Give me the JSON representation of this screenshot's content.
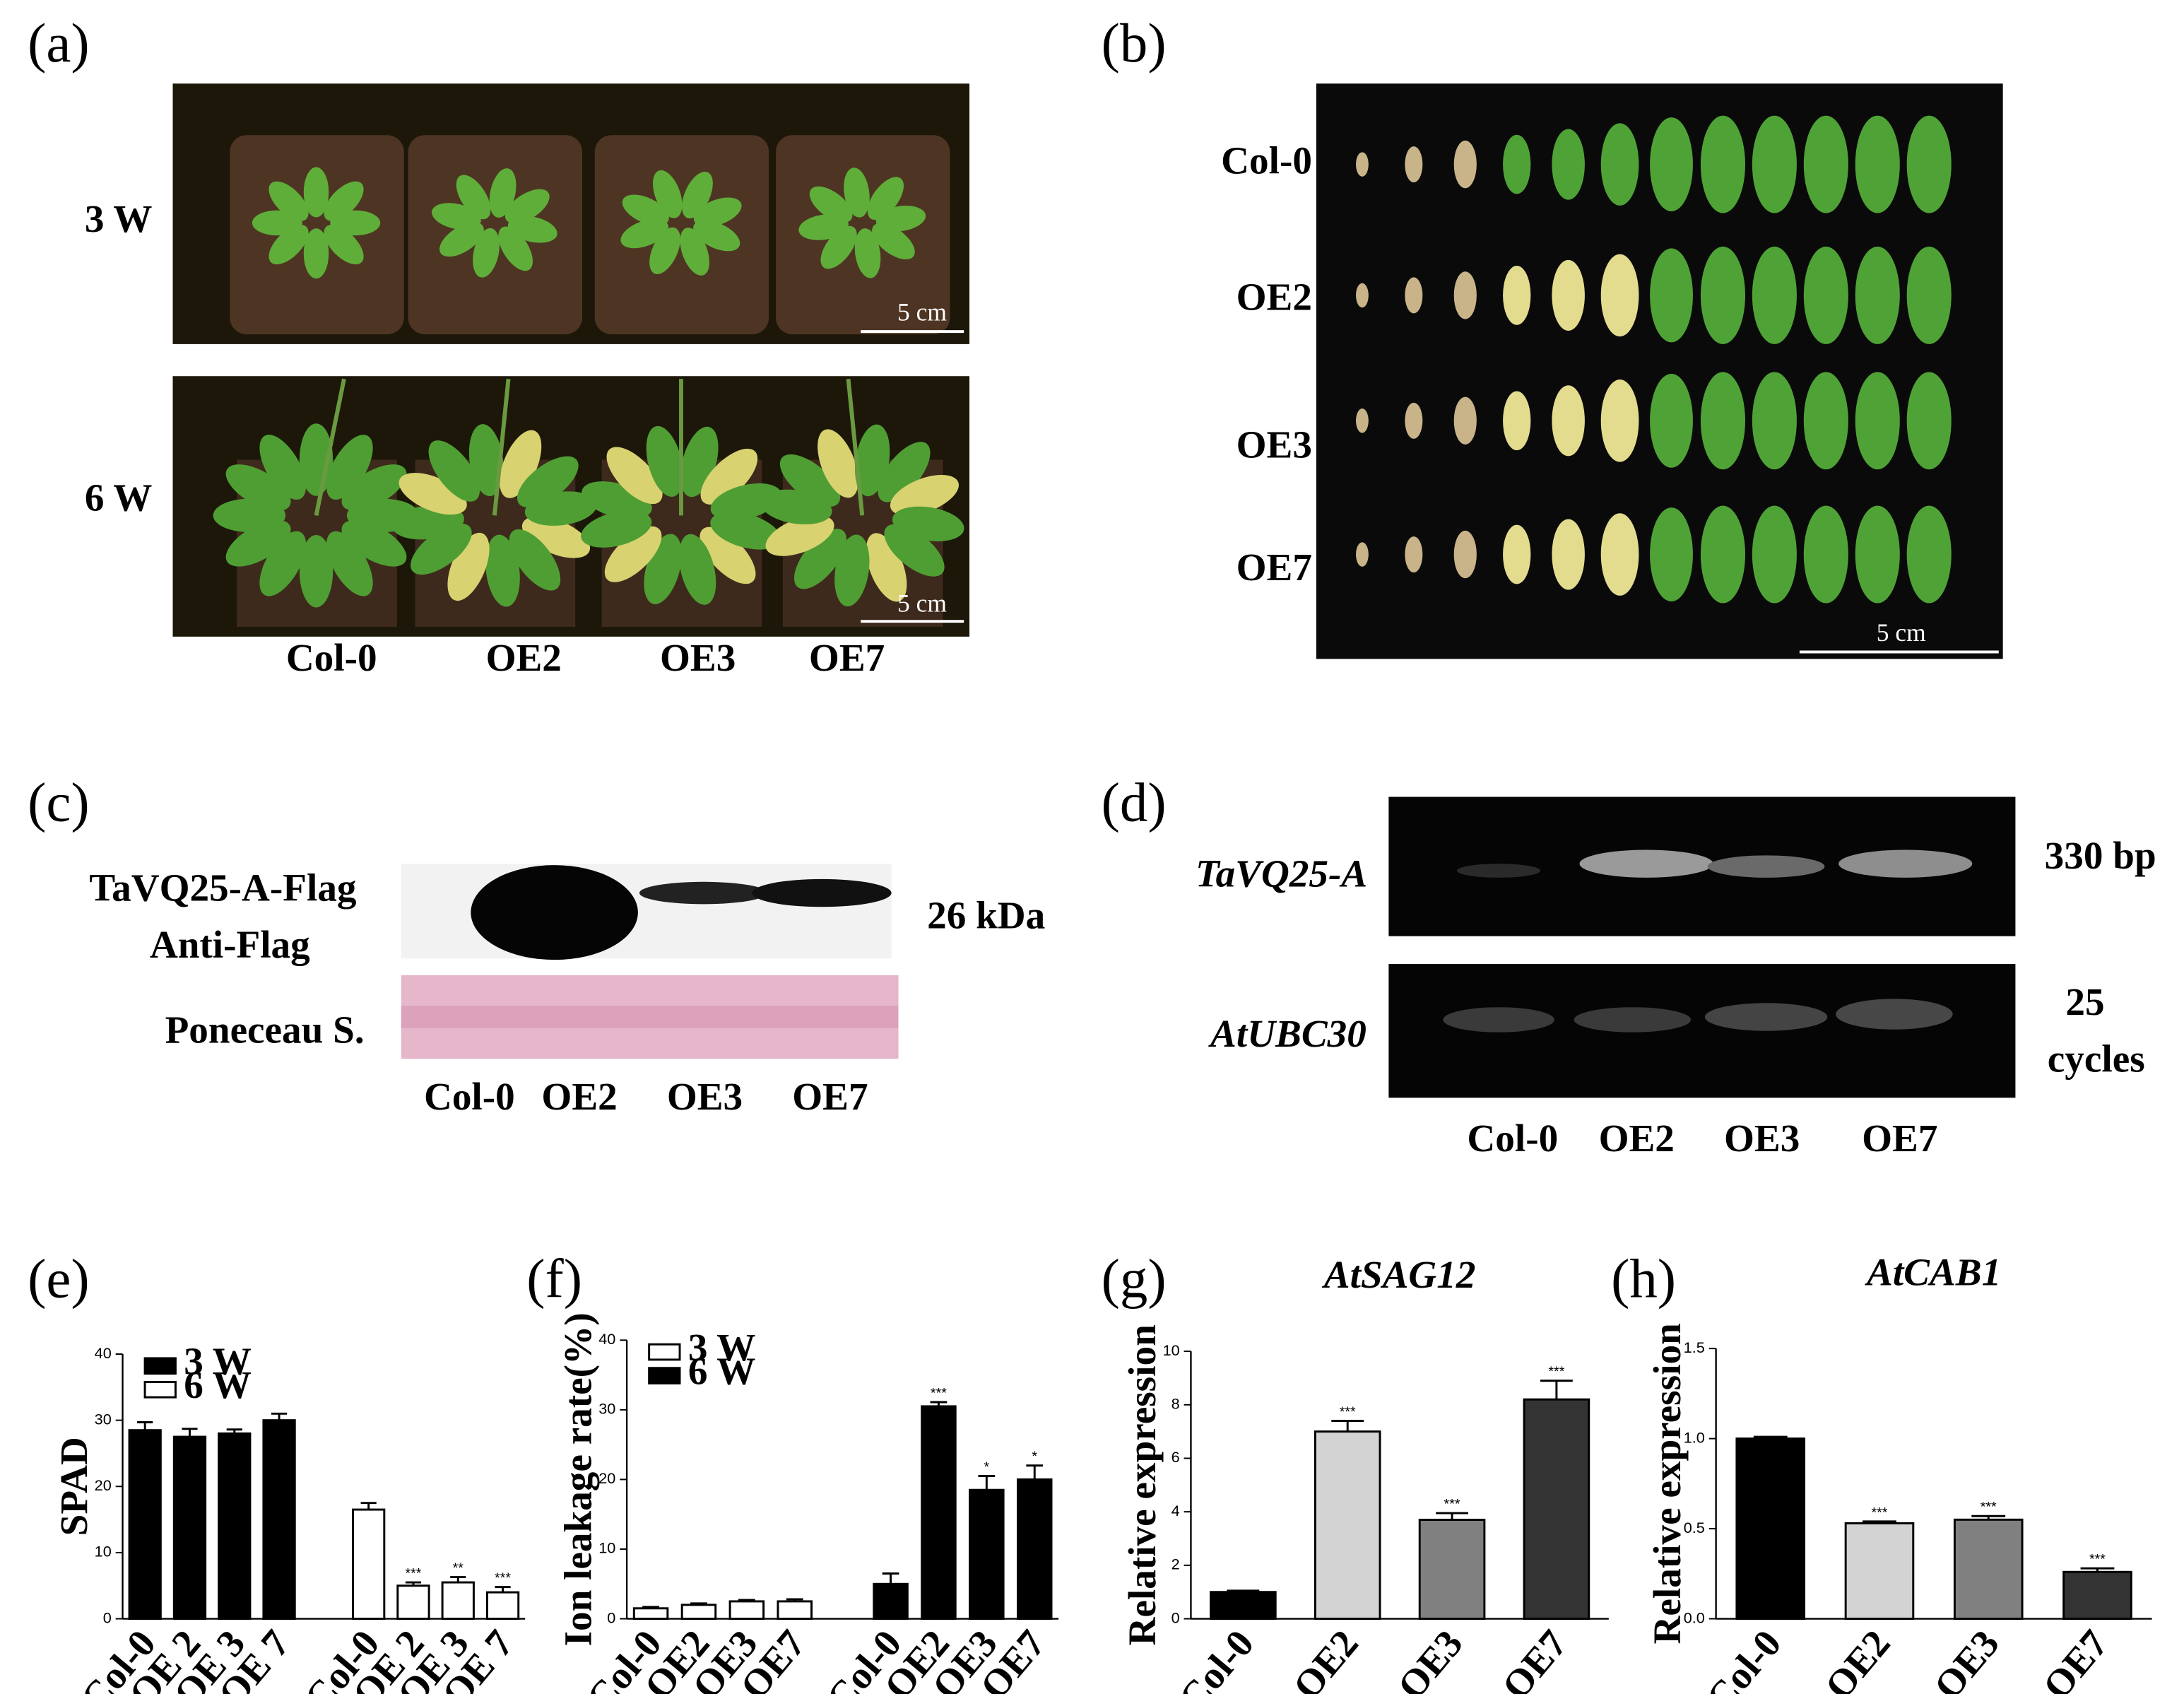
{
  "panel_labels": [
    "(a)",
    "(b)",
    "(c)",
    "(d)",
    "(e)",
    "(f)",
    "(g)",
    "(h)"
  ],
  "panel_a": {
    "rows": [
      "3 W",
      "6 W"
    ],
    "scale_bar": "5 cm",
    "lanes": [
      "Col-0",
      "OE2",
      "OE3",
      "OE7"
    ]
  },
  "panel_b": {
    "rows": [
      "Col-0",
      "OE2",
      "OE3",
      "OE7"
    ],
    "scale_bar": "5 cm"
  },
  "panel_c": {
    "rows": [
      "TaVQ25-A-Flag",
      "Anti-Flag",
      "Poneceau S."
    ],
    "band_size": "26 kDa",
    "lanes": [
      "Col-0",
      "OE2",
      "OE3",
      "OE7"
    ]
  },
  "panel_d": {
    "genes": [
      "TaVQ25-A",
      "AtUBC30"
    ],
    "product_size": "330 bp",
    "cycles": [
      "25",
      "cycles"
    ],
    "lanes": [
      "Col-0",
      "OE2",
      "OE3",
      "OE7"
    ]
  },
  "chart_data": [
    {
      "type": "bar",
      "ylabel": "SPAD",
      "ylim": [
        0,
        40
      ],
      "yticks": [
        0,
        10,
        20,
        30,
        40
      ],
      "legend": "upper left",
      "categories": [
        "Col-0",
        "OE 2",
        "OE 3",
        "OE 7",
        "Col-0",
        "OE 2",
        "OE 3",
        "OE 7"
      ],
      "series": [
        {
          "name": "3 W",
          "color": "#000000",
          "values": [
            28.5,
            27.5,
            28,
            30,
            null,
            null,
            null,
            null
          ],
          "errors": [
            1.2,
            1.2,
            0.6,
            1,
            null,
            null,
            null,
            null
          ],
          "significance": [
            null,
            null,
            null,
            null,
            null,
            null,
            null,
            null
          ]
        },
        {
          "name": "6 W",
          "color": "#ffffff",
          "values": [
            null,
            null,
            null,
            null,
            16.5,
            5,
            5.5,
            4
          ],
          "errors": [
            null,
            null,
            null,
            null,
            1,
            0.5,
            0.8,
            0.8
          ],
          "significance": [
            null,
            null,
            null,
            null,
            null,
            "***",
            "**",
            "***"
          ]
        }
      ]
    },
    {
      "type": "bar",
      "ylabel": "Ion leakage rate(%)",
      "ylim": [
        0,
        40
      ],
      "yticks": [
        0,
        10,
        20,
        30,
        40
      ],
      "legend": "upper left",
      "categories": [
        "Col-0",
        "OE2",
        "OE3",
        "OE7",
        "Col-0",
        "OE2",
        "OE3",
        "OE7"
      ],
      "series": [
        {
          "name": "3 W",
          "color": "#ffffff",
          "values": [
            1.5,
            2,
            2.5,
            2.5,
            null,
            null,
            null,
            null
          ],
          "errors": [
            0.2,
            0.2,
            0.2,
            0.3,
            null,
            null,
            null,
            null
          ],
          "significance": [
            null,
            null,
            null,
            null,
            null,
            null,
            null,
            null
          ]
        },
        {
          "name": "6 W",
          "color": "#000000",
          "values": [
            null,
            null,
            null,
            null,
            5,
            30.5,
            18.5,
            20
          ],
          "errors": [
            null,
            null,
            null,
            null,
            1.5,
            0.6,
            2,
            2
          ],
          "significance": [
            null,
            null,
            null,
            null,
            null,
            "***",
            "*",
            "*"
          ]
        }
      ]
    },
    {
      "type": "bar",
      "title": "AtSAG12",
      "ylabel": "Relative expression",
      "ylim": [
        0,
        10
      ],
      "yticks": [
        0,
        2,
        4,
        6,
        8,
        10
      ],
      "categories": [
        "Col-0",
        "OE2",
        "OE3",
        "OE7"
      ],
      "colors": [
        "#000000",
        "#d3d3d3",
        "#808080",
        "#333333"
      ],
      "values": [
        1,
        7,
        3.7,
        8.2
      ],
      "errors": [
        0.05,
        0.4,
        0.25,
        0.7
      ],
      "significance": [
        null,
        "***",
        "***",
        "***"
      ]
    },
    {
      "type": "bar",
      "title": "AtCAB1",
      "ylabel": "Relative expression",
      "ylim": [
        0,
        1.5
      ],
      "yticks": [
        {
          "value": 0,
          "label": "0.0"
        },
        0.5,
        {
          "value": 1,
          "label": "1.0"
        },
        1.5
      ],
      "categories": [
        "Col-0",
        "OE2",
        "OE3",
        "OE7"
      ],
      "colors": [
        "#000000",
        "#d3d3d3",
        "#808080",
        "#333333"
      ],
      "values": [
        1.0,
        0.53,
        0.55,
        0.26
      ],
      "errors": [
        0.01,
        0.01,
        0.02,
        0.02
      ],
      "significance": [
        null,
        "***",
        "***",
        "***"
      ]
    }
  ]
}
